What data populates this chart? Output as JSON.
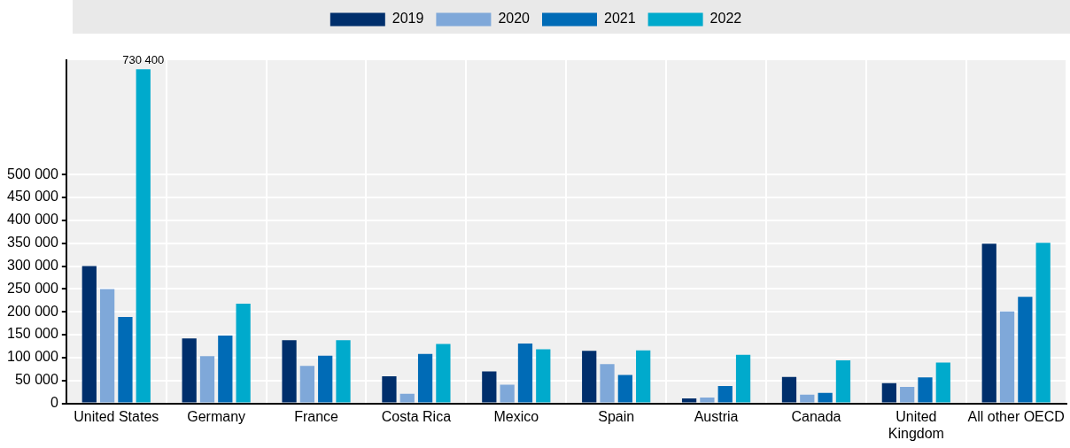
{
  "chart_data": {
    "type": "bar",
    "categories": [
      "United States",
      "Germany",
      "France",
      "Costa Rica",
      "Mexico",
      "Spain",
      "Austria",
      "Canada",
      "United\nKingdom",
      "All other OECD"
    ],
    "series": [
      {
        "name": "2019",
        "color": "#002f6c",
        "values": [
          300000,
          142000,
          138000,
          59000,
          70000,
          115000,
          11000,
          58000,
          44000,
          349000
        ]
      },
      {
        "name": "2020",
        "color": "#7fa8d9",
        "values": [
          250000,
          103000,
          82000,
          21000,
          41000,
          86000,
          13000,
          19000,
          36000,
          201000
        ]
      },
      {
        "name": "2021",
        "color": "#006bb6",
        "values": [
          189000,
          148000,
          104000,
          108000,
          131000,
          62000,
          38000,
          23000,
          57000,
          233000
        ]
      },
      {
        "name": "2022",
        "color": "#00aacc",
        "values": [
          730400,
          218000,
          138000,
          130000,
          118000,
          116000,
          106000,
          94000,
          89000,
          351000
        ],
        "value_labels": [
          "730 400",
          null,
          null,
          null,
          null,
          null,
          null,
          null,
          null,
          null
        ]
      }
    ],
    "ylim": [
      0,
      750000
    ],
    "yticks": [
      {
        "value": 0,
        "label": "0"
      },
      {
        "value": 50000,
        "label": "50 000"
      },
      {
        "value": 100000,
        "label": "100 000"
      },
      {
        "value": 150000,
        "label": "150 000"
      },
      {
        "value": 200000,
        "label": "200 000"
      },
      {
        "value": 250000,
        "label": "250 000"
      },
      {
        "value": 300000,
        "label": "300 000"
      },
      {
        "value": 350000,
        "label": "350 000"
      },
      {
        "value": 400000,
        "label": "400 000"
      },
      {
        "value": 450000,
        "label": "450 000"
      },
      {
        "value": 500000,
        "label": "500 000"
      }
    ],
    "grid": true,
    "legend": "top"
  }
}
